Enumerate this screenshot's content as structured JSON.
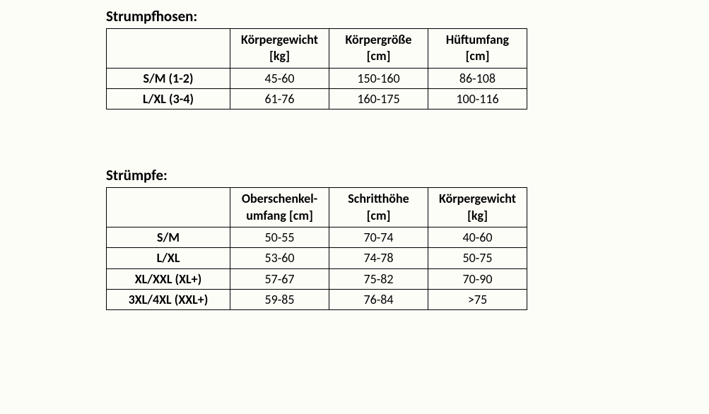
{
  "tables": [
    {
      "title": "Strumpfhosen:",
      "columns": [
        {
          "line1": "",
          "line2": ""
        },
        {
          "line1": "Körpergewicht",
          "line2": "[kg]"
        },
        {
          "line1": "Körpergröße",
          "line2": "[cm]"
        },
        {
          "line1": "Hüftumfang",
          "line2": "[cm]"
        }
      ],
      "rows": [
        {
          "size": "S/M (1-2)",
          "c1": "45-60",
          "c2": "150-160",
          "c3": "86-108"
        },
        {
          "size": "L/XL (3-4)",
          "c1": "61-76",
          "c2": "160-175",
          "c3": "100-116"
        }
      ]
    },
    {
      "title": "Strümpfe:",
      "columns": [
        {
          "line1": "",
          "line2": ""
        },
        {
          "line1": "Oberschenkel-",
          "line2": "umfang [cm]"
        },
        {
          "line1": "Schritthöhe",
          "line2": "[cm]"
        },
        {
          "line1": "Körpergewicht",
          "line2": "[kg]"
        }
      ],
      "rows": [
        {
          "size": "S/M",
          "c1": "50-55",
          "c2": "70-74",
          "c3": "40-60"
        },
        {
          "size": "L/XL",
          "c1": "53-60",
          "c2": "74-78",
          "c3": "50-75"
        },
        {
          "size": "XL/XXL (XL+)",
          "c1": "57-67",
          "c2": "75-82",
          "c3": "70-90"
        },
        {
          "size": "3XL/4XL (XXL+)",
          "c1": "59-85",
          "c2": "76-84",
          "c3": ">75"
        }
      ]
    }
  ],
  "style": {
    "background_color": "#fdfdf8",
    "border_color": "#000000",
    "text_color": "#000000",
    "title_fontsize": 21,
    "cell_fontsize": 18,
    "font_family": "Calibri",
    "col_size_width": 175,
    "col_data_width": 140
  }
}
